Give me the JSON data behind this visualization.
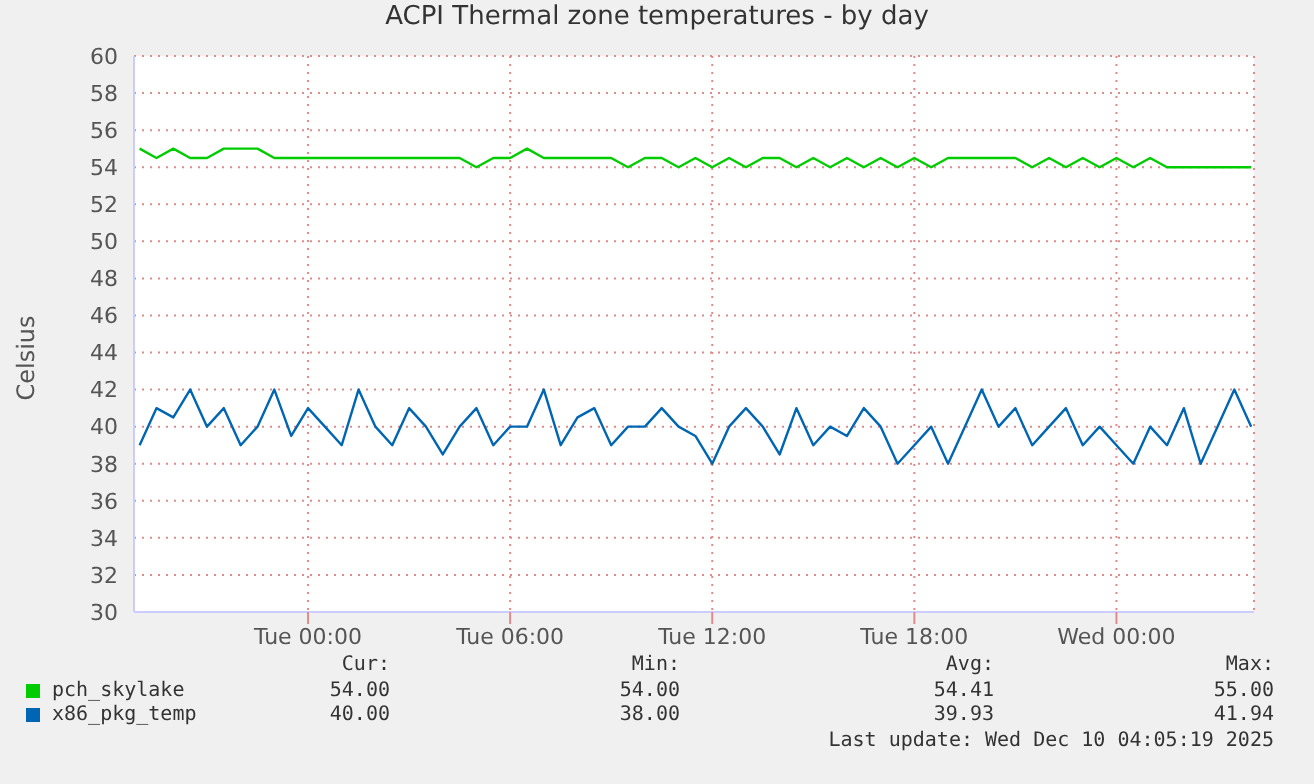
{
  "chart_data": {
    "type": "line",
    "title": "ACPI Thermal zone temperatures - by day",
    "ylabel": "Celsius",
    "x": [
      "2025-12-08T19:00",
      "2025-12-08T19:30",
      "2025-12-08T20:00",
      "2025-12-08T20:30",
      "2025-12-08T21:00",
      "2025-12-08T21:30",
      "2025-12-08T22:00",
      "2025-12-08T22:30",
      "2025-12-08T23:00",
      "2025-12-08T23:30",
      "2025-12-09T00:00",
      "2025-12-09T00:30",
      "2025-12-09T01:00",
      "2025-12-09T01:30",
      "2025-12-09T02:00",
      "2025-12-09T02:30",
      "2025-12-09T03:00",
      "2025-12-09T03:30",
      "2025-12-09T04:00",
      "2025-12-09T04:30",
      "2025-12-09T05:00",
      "2025-12-09T05:30",
      "2025-12-09T06:00",
      "2025-12-09T06:30",
      "2025-12-09T07:00",
      "2025-12-09T07:30",
      "2025-12-09T08:00",
      "2025-12-09T08:30",
      "2025-12-09T09:00",
      "2025-12-09T09:30",
      "2025-12-09T10:00",
      "2025-12-09T10:30",
      "2025-12-09T11:00",
      "2025-12-09T11:30",
      "2025-12-09T12:00",
      "2025-12-09T12:30",
      "2025-12-09T13:00",
      "2025-12-09T13:30",
      "2025-12-09T14:00",
      "2025-12-09T14:30",
      "2025-12-09T15:00",
      "2025-12-09T15:30",
      "2025-12-09T16:00",
      "2025-12-09T16:30",
      "2025-12-09T17:00",
      "2025-12-09T17:30",
      "2025-12-09T18:00",
      "2025-12-09T18:30",
      "2025-12-09T19:00",
      "2025-12-09T19:30",
      "2025-12-09T20:00",
      "2025-12-09T20:30",
      "2025-12-09T21:00",
      "2025-12-09T21:30",
      "2025-12-09T22:00",
      "2025-12-09T22:30",
      "2025-12-09T23:00",
      "2025-12-09T23:30",
      "2025-12-10T00:00",
      "2025-12-10T00:30",
      "2025-12-10T01:00",
      "2025-12-10T01:30",
      "2025-12-10T02:00",
      "2025-12-10T02:30",
      "2025-12-10T03:00",
      "2025-12-10T03:30",
      "2025-12-10T04:00"
    ],
    "series": [
      {
        "name": "pch_skylake",
        "color": "#00cc00",
        "values": [
          55,
          54.5,
          55,
          54.5,
          54.5,
          55,
          55,
          55,
          54.5,
          54.5,
          54.5,
          54.5,
          54.5,
          54.5,
          54.5,
          54.5,
          54.5,
          54.5,
          54.5,
          54.5,
          54,
          54.5,
          54.5,
          55,
          54.5,
          54.5,
          54.5,
          54.5,
          54.5,
          54,
          54.5,
          54.5,
          54,
          54.5,
          54,
          54.5,
          54,
          54.5,
          54.5,
          54,
          54.5,
          54,
          54.5,
          54,
          54.5,
          54,
          54.5,
          54,
          54.5,
          54.5,
          54.5,
          54.5,
          54.5,
          54,
          54.5,
          54,
          54.5,
          54,
          54.5,
          54,
          54.5,
          54,
          54,
          54,
          54,
          54,
          54
        ]
      },
      {
        "name": "x86_pkg_temp",
        "color": "#0066b3",
        "values": [
          39,
          41,
          40.5,
          42,
          40,
          41,
          39,
          40,
          42,
          39.5,
          41,
          40,
          39,
          42,
          40,
          39,
          41,
          40,
          38.5,
          40,
          41,
          39,
          40,
          40,
          42,
          39,
          40.5,
          41,
          39,
          40,
          40,
          41,
          40,
          39.5,
          38,
          40,
          41,
          40,
          38.5,
          41,
          39,
          40,
          39.5,
          41,
          40,
          38,
          39,
          40,
          38,
          40,
          42,
          40,
          41,
          39,
          40,
          41,
          39,
          40,
          39,
          38,
          40,
          39,
          41,
          38,
          40,
          42,
          40
        ]
      }
    ],
    "xlim": [
      "2025-12-08T18:50",
      "2025-12-10T04:05"
    ],
    "xticks": [
      {
        "value": "2025-12-09T00:00",
        "label": "Tue 00:00"
      },
      {
        "value": "2025-12-09T06:00",
        "label": "Tue 06:00"
      },
      {
        "value": "2025-12-09T12:00",
        "label": "Tue 12:00"
      },
      {
        "value": "2025-12-09T18:00",
        "label": "Tue 18:00"
      },
      {
        "value": "2025-12-10T00:00",
        "label": "Wed 00:00"
      }
    ],
    "ylim": [
      30,
      60
    ],
    "yticks": [
      30,
      32,
      34,
      36,
      38,
      40,
      42,
      44,
      46,
      48,
      50,
      52,
      54,
      56,
      58,
      60
    ],
    "grid": true,
    "legend": "bottom",
    "marker": "none",
    "line_style": "solid",
    "annotations": [
      "Cur:",
      "Min:",
      "Avg:",
      "Max:",
      "54.00",
      "54.00",
      "54.41",
      "55.00",
      "40.00",
      "38.00",
      "39.93",
      "41.94",
      "Last update: Wed Dec 10 04:05:19 2025"
    ]
  }
}
